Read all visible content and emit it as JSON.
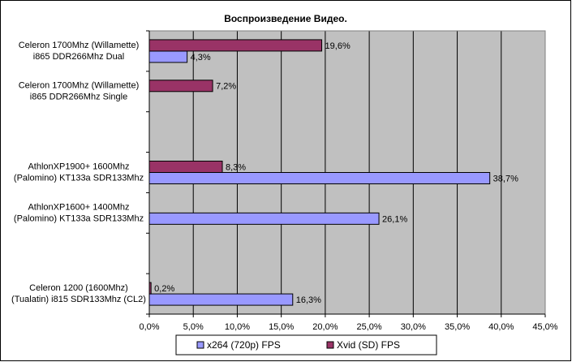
{
  "chart_data": {
    "type": "hbar",
    "title": "Воспроизведение Видео.",
    "categories": [
      [
        "Celeron 1700Mhz  (Willamette)",
        "i865 DDR266Mhz Dual"
      ],
      [
        "Celeron 1700Mhz  (Willamette)",
        "i865 DDR266Mhz Single"
      ],
      null,
      [
        "AthlonXP1900+ 1600Mhz",
        "(Palomino) KT133a SDR133Mhz"
      ],
      [
        "AthlonXP1600+ 1400Mhz",
        "(Palomino) KT133a SDR133Mhz"
      ],
      null,
      [
        "Celeron 1200 (1600Mhz)",
        "(Tualatin) i815 SDR133Mhz (CL2)"
      ]
    ],
    "series": [
      {
        "name": "x264 (720p) FPS",
        "color": "#9999ff",
        "values": [
          4.3,
          null,
          null,
          38.7,
          26.1,
          null,
          16.3
        ],
        "value_labels": [
          "4,3%",
          null,
          null,
          "38,7%",
          "26,1%",
          null,
          "16,3%"
        ]
      },
      {
        "name": "Xvid (SD) FPS",
        "color": "#993366",
        "values": [
          19.6,
          7.2,
          null,
          8.3,
          null,
          null,
          0.2
        ],
        "value_labels": [
          "19,6%",
          "7,2%",
          null,
          "8,3%",
          null,
          null,
          "0,2%"
        ]
      }
    ],
    "xlim": [
      0,
      45
    ],
    "xticks": [
      {
        "value": 0,
        "label": "0,0%"
      },
      {
        "value": 5,
        "label": "5,0%"
      },
      {
        "value": 10,
        "label": "10,0%"
      },
      {
        "value": 15,
        "label": "15,0%"
      },
      {
        "value": 20,
        "label": "20,0%"
      },
      {
        "value": 25,
        "label": "25,0%"
      },
      {
        "value": 30,
        "label": "30,0%"
      },
      {
        "value": 35,
        "label": "35,0%"
      },
      {
        "value": 40,
        "label": "40,0%"
      },
      {
        "value": 45,
        "label": "45,0%"
      }
    ],
    "grid": true,
    "legend": "bottom"
  }
}
